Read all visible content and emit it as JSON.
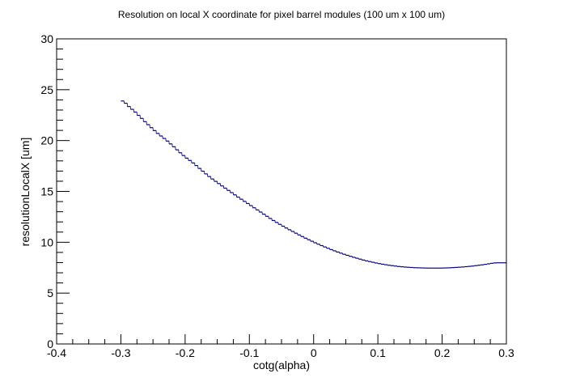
{
  "chart_data": {
    "type": "line",
    "title": "Resolution on local X coordinate for pixel barrel modules (100 um x 100 um)",
    "xlabel": "cotg(alpha)",
    "ylabel": "resolutionLocalX [um]",
    "xlim": [
      -0.4,
      0.3
    ],
    "ylim": [
      0,
      30
    ],
    "x_ticks": [
      "-0.4",
      "-0.3",
      "-0.2",
      "-0.1",
      "0",
      "0.1",
      "0.2",
      "0.3"
    ],
    "y_ticks": [
      "0",
      "5",
      "10",
      "15",
      "20",
      "25",
      "30"
    ],
    "grid": false,
    "legend": "none",
    "line_color": "#000080",
    "series": [
      {
        "step_width": 0.005,
        "x": [
          -0.2975,
          -0.2925,
          -0.2875,
          -0.2825,
          -0.2775,
          -0.2725,
          -0.2675,
          -0.2625,
          -0.2575,
          -0.2525,
          -0.2475,
          -0.2425,
          -0.2375,
          -0.2325,
          -0.2275,
          -0.2225,
          -0.2175,
          -0.2125,
          -0.2075,
          -0.2025,
          -0.1975,
          -0.1925,
          -0.1875,
          -0.1825,
          -0.1775,
          -0.1725,
          -0.1675,
          -0.1625,
          -0.1575,
          -0.1525,
          -0.1475,
          -0.1425,
          -0.1375,
          -0.1325,
          -0.1275,
          -0.1225,
          -0.1175,
          -0.1125,
          -0.1075,
          -0.1025,
          -0.0975,
          -0.0925,
          -0.0875,
          -0.0825,
          -0.0775,
          -0.0725,
          -0.0675,
          -0.0625,
          -0.0575,
          -0.0525,
          -0.0475,
          -0.0425,
          -0.0375,
          -0.0325,
          -0.0275,
          -0.0225,
          -0.0175,
          -0.0125,
          -0.0075,
          -0.0025,
          0.0025,
          0.0075,
          0.0125,
          0.0175,
          0.0225,
          0.0275,
          0.0325,
          0.0375,
          0.0425,
          0.0475,
          0.0525,
          0.0575,
          0.0625,
          0.0675,
          0.0725,
          0.0775,
          0.0825,
          0.0875,
          0.0925,
          0.0975,
          0.1025,
          0.1075,
          0.1125,
          0.1175,
          0.1225,
          0.1275,
          0.1325,
          0.1375,
          0.1425,
          0.1475,
          0.1525,
          0.1575,
          0.1625,
          0.1675,
          0.1725,
          0.1775,
          0.1825,
          0.1875,
          0.1925,
          0.1975,
          0.2025,
          0.2075,
          0.2125,
          0.2175,
          0.2225,
          0.2275,
          0.2325,
          0.2375,
          0.2425,
          0.2475,
          0.2525,
          0.2575,
          0.2625,
          0.2675,
          0.2725,
          0.2775,
          0.2825,
          0.2875,
          0.2925,
          0.2975
        ],
        "y": [
          23.89,
          23.67,
          23.35,
          23.07,
          22.8,
          22.48,
          22.18,
          21.86,
          21.56,
          21.27,
          20.98,
          20.7,
          20.45,
          20.21,
          19.95,
          19.67,
          19.39,
          19.09,
          18.8,
          18.53,
          18.27,
          18.04,
          17.8,
          17.54,
          17.26,
          16.99,
          16.72,
          16.46,
          16.22,
          15.99,
          15.77,
          15.54,
          15.32,
          15.1,
          14.88,
          14.66,
          14.44,
          14.23,
          14.02,
          13.81,
          13.6,
          13.39,
          13.18,
          12.97,
          12.76,
          12.55,
          12.34,
          12.14,
          11.95,
          11.76,
          11.58,
          11.4,
          11.23,
          11.06,
          10.89,
          10.72,
          10.56,
          10.4,
          10.25,
          10.1,
          9.95,
          9.81,
          9.67,
          9.54,
          9.41,
          9.28,
          9.16,
          9.04,
          8.93,
          8.82,
          8.72,
          8.62,
          8.52,
          8.43,
          8.34,
          8.25,
          8.17,
          8.1,
          8.03,
          7.96,
          7.9,
          7.84,
          7.79,
          7.74,
          7.7,
          7.66,
          7.62,
          7.59,
          7.56,
          7.54,
          7.52,
          7.5,
          7.49,
          7.48,
          7.47,
          7.46,
          7.46,
          7.46,
          7.46,
          7.46,
          7.47,
          7.48,
          7.49,
          7.51,
          7.53,
          7.55,
          7.57,
          7.6,
          7.63,
          7.66,
          7.7,
          7.74,
          7.78,
          7.83,
          7.88,
          7.93,
          7.97,
          7.98,
          7.98,
          7.98
        ]
      }
    ]
  }
}
